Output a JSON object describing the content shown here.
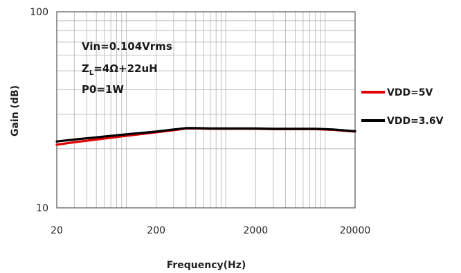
{
  "chart_data": {
    "type": "line",
    "xscale": "log",
    "yscale": "log",
    "xlim": [
      20,
      20000
    ],
    "ylim": [
      10,
      100
    ],
    "xticks": [
      "20",
      "200",
      "2000",
      "20000"
    ],
    "yticks": [
      "10",
      "100"
    ],
    "xlabel": "Frequency(Hz)",
    "ylabel": "Gain (dB)",
    "grid": true,
    "legend_position": "right",
    "annotations": {
      "line1": "Vin=0.104Vrms",
      "line2_main": "Z",
      "line2_sub": "L",
      "line2_rest": "=4Ω+22uH",
      "line3": "P0=1W"
    },
    "series": [
      {
        "name": "VDD=5V",
        "color": "#e00000",
        "x": [
          20,
          30,
          50,
          100,
          200,
          300,
          400,
          500,
          700,
          1000,
          2000,
          3000,
          5000,
          8000,
          12000,
          20000
        ],
        "y": [
          21.0,
          21.6,
          22.3,
          23.3,
          24.3,
          24.9,
          25.4,
          25.4,
          25.3,
          25.3,
          25.3,
          25.2,
          25.2,
          25.2,
          25.0,
          24.5
        ]
      },
      {
        "name": "VDD=3.6V",
        "color": "#000000",
        "x": [
          20,
          30,
          50,
          100,
          200,
          300,
          400,
          500,
          700,
          1000,
          2000,
          3000,
          5000,
          8000,
          12000,
          20000
        ],
        "y": [
          21.8,
          22.3,
          22.9,
          23.7,
          24.5,
          25.1,
          25.5,
          25.5,
          25.4,
          25.4,
          25.4,
          25.3,
          25.3,
          25.3,
          25.1,
          24.6
        ]
      }
    ]
  }
}
